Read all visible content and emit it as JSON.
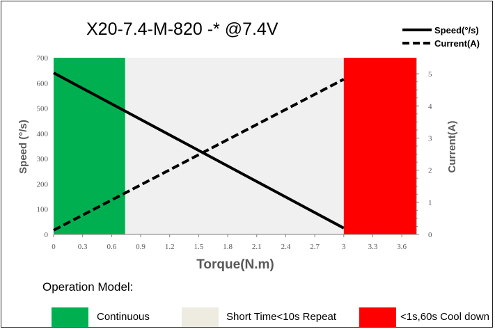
{
  "chart_data": {
    "type": "line",
    "title": "X20-7.4-M-820 -* @7.4V",
    "xlabel": "Torque(N.m)",
    "ylabel": "Speed  (°/s)",
    "y2label": "Current(A)",
    "xlim": [
      0,
      3.75
    ],
    "ylim": [
      0,
      700
    ],
    "y2lim": [
      0,
      5.5
    ],
    "x_ticks": [
      "0",
      "0.3",
      "0.6",
      "0.9",
      "1.2",
      "1.5",
      "1.8",
      "2.1",
      "2.4",
      "2.7",
      "3",
      "3.3",
      "3.6"
    ],
    "y_ticks": [
      "0",
      "100",
      "200",
      "300",
      "400",
      "500",
      "600",
      "700"
    ],
    "y2_ticks": [
      "0",
      "1",
      "2",
      "3",
      "4",
      "5"
    ],
    "legend_position": "top-right",
    "series": [
      {
        "name": "Speed(°/s)",
        "axis": "left",
        "style": "solid",
        "color": "#000000",
        "x": [
          0,
          3
        ],
        "y": [
          640,
          25
        ]
      },
      {
        "name": "Current(A)",
        "axis": "right",
        "style": "dashed",
        "color": "#000000",
        "x": [
          0,
          3
        ],
        "y": [
          0.13,
          4.83
        ]
      }
    ],
    "regions": [
      {
        "x0": 0,
        "x1": 0.74,
        "color": "#00b050"
      },
      {
        "x0": 0.74,
        "x1": 3,
        "color": "#f0f0f0"
      },
      {
        "x0": 3,
        "x1": 3.75,
        "color": "#ff0000"
      }
    ]
  },
  "operation_model": {
    "title": "Operation Model:",
    "items": [
      {
        "label": "Continuous",
        "color": "#00b050"
      },
      {
        "label": "Short Time<10s Repeat",
        "color": "#eeece1"
      },
      {
        "label": "<1s,60s Cool down",
        "color": "#ff0000"
      }
    ]
  }
}
